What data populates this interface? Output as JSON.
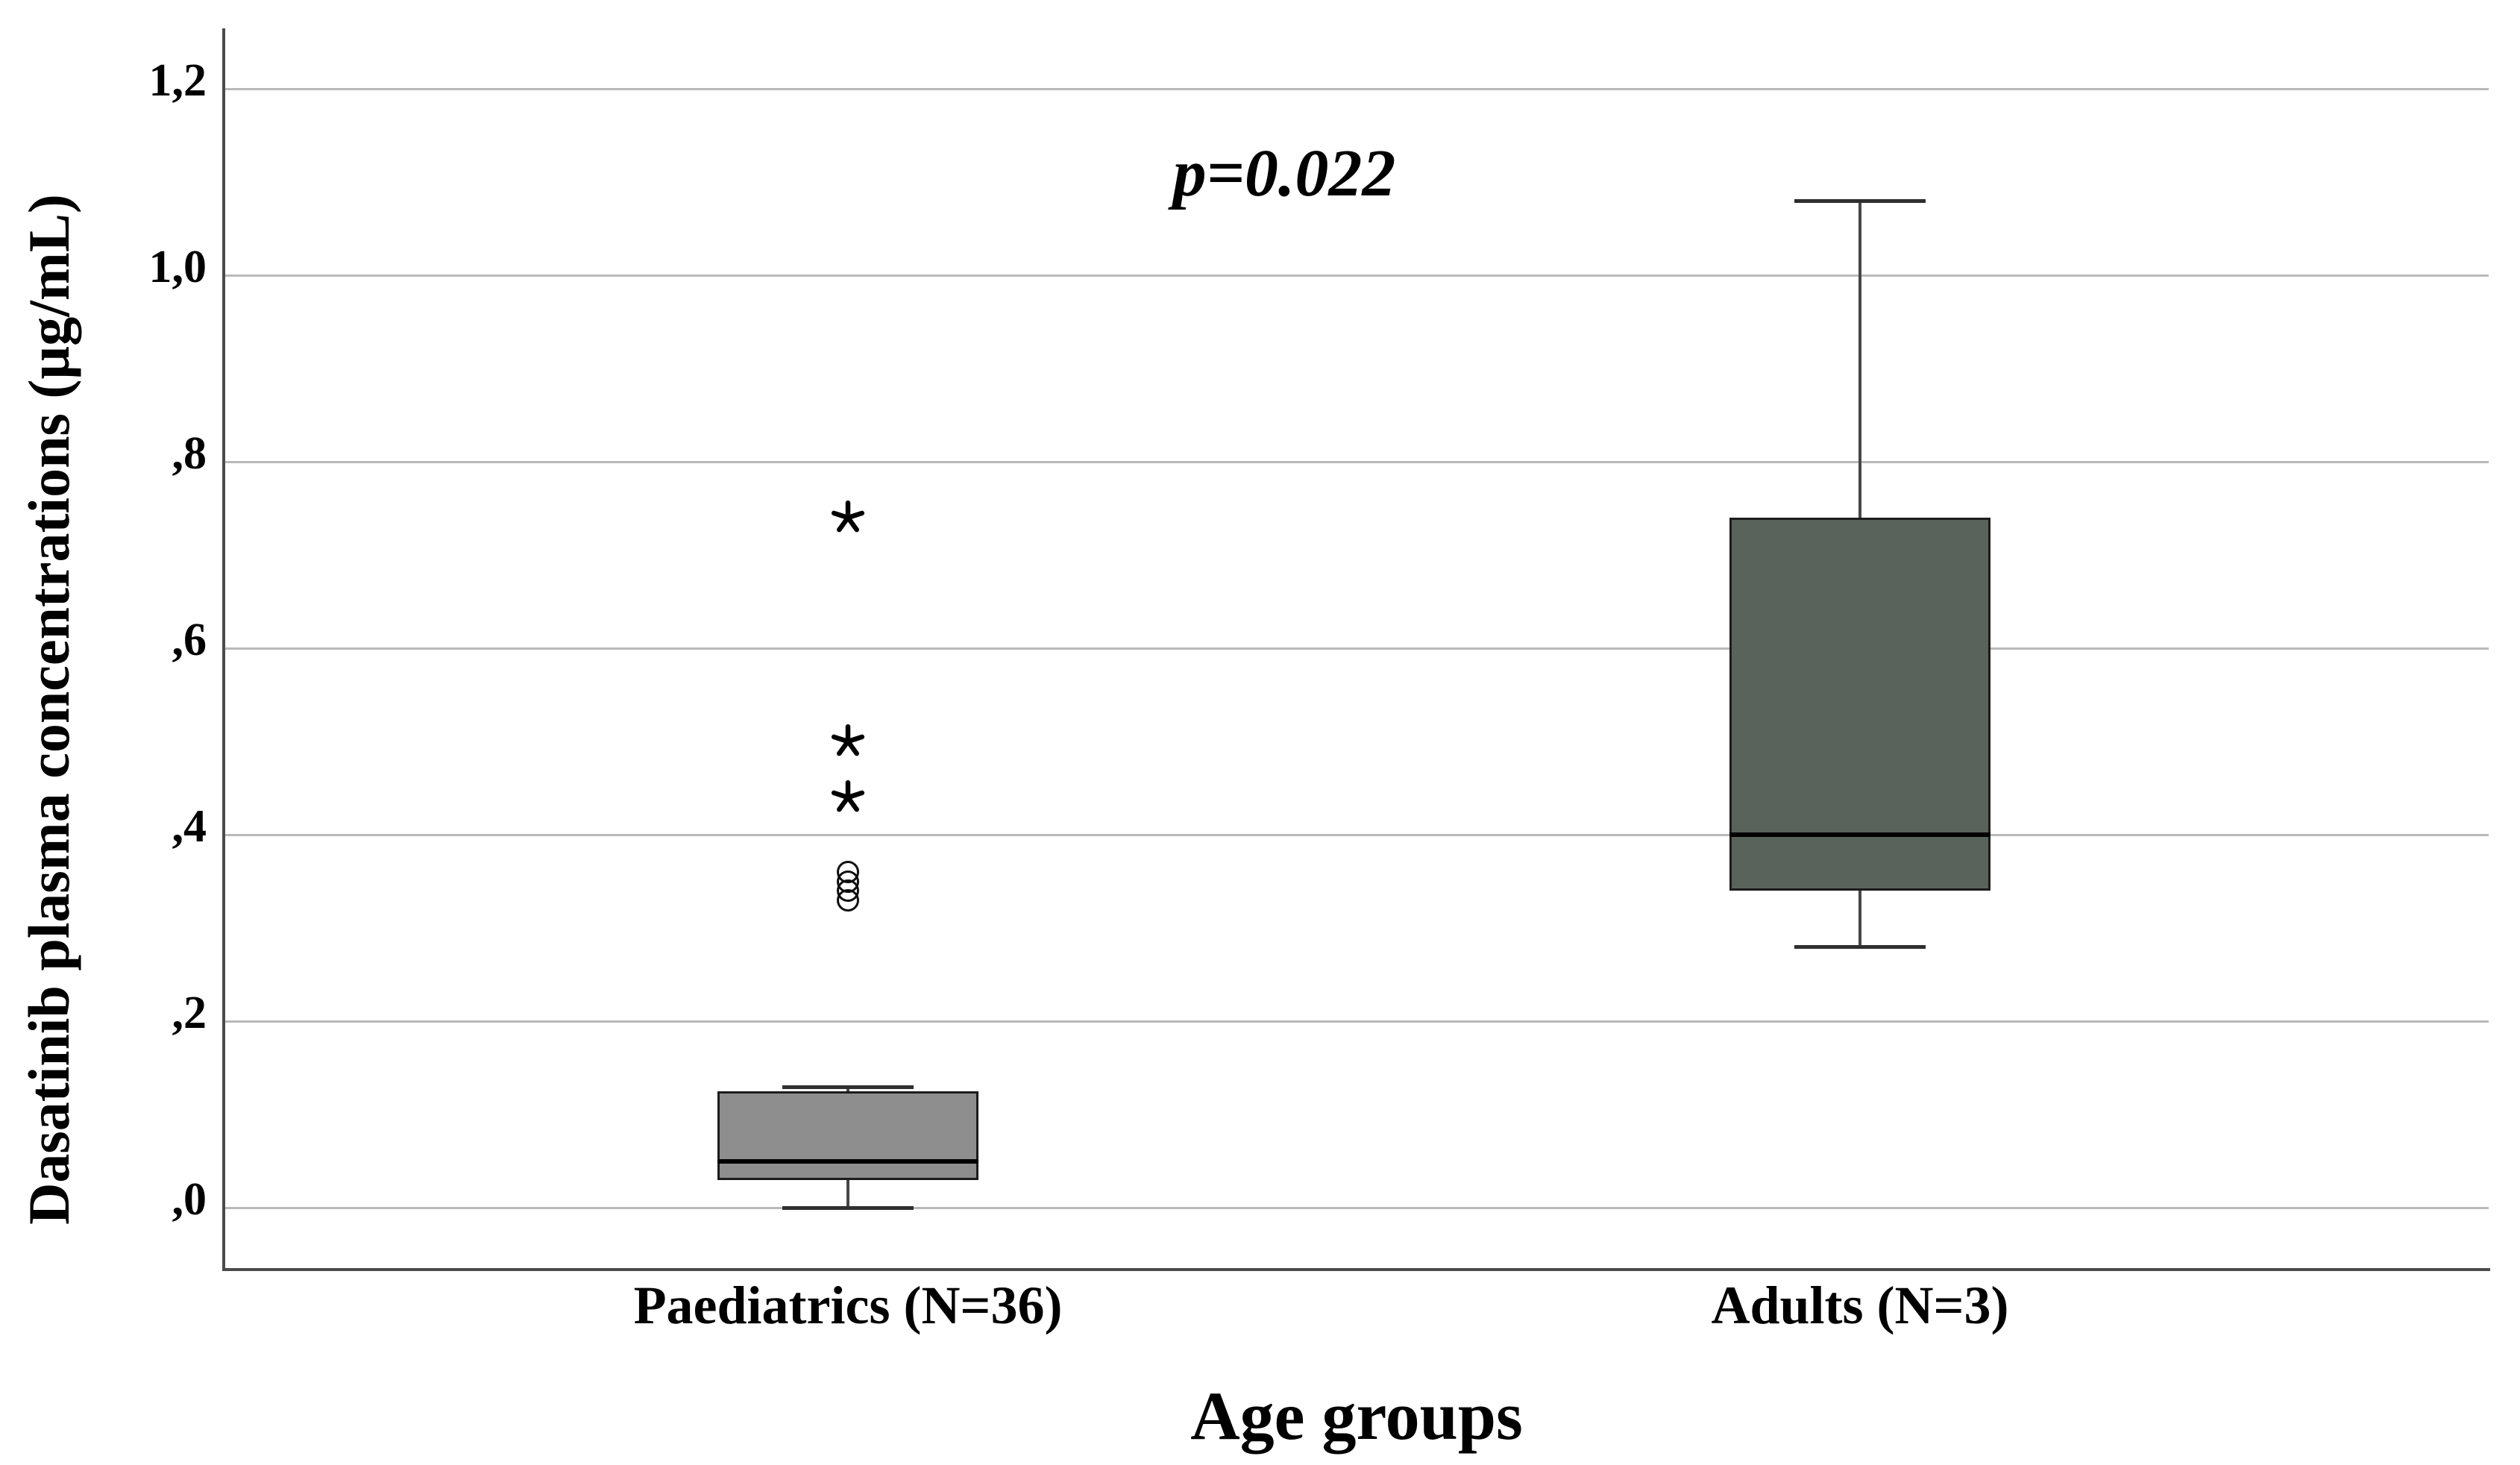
{
  "chart_data": {
    "type": "boxplot",
    "xlabel": "Age groups",
    "ylabel": "Dasatinib plasma concentrations (µg/mL)",
    "annotation": "p=0.022",
    "ylim": [
      -0.07,
      1.27
    ],
    "grid": true,
    "legend": false,
    "categories": [
      "Paediatrics (N=36)",
      "Adults (N=3)"
    ],
    "yticks": [
      {
        "value": 1.2,
        "label": "1,2"
      },
      {
        "value": 1.0,
        "label": "1,0"
      },
      {
        "value": 0.8,
        "label": ",8"
      },
      {
        "value": 0.6,
        "label": ",6"
      },
      {
        "value": 0.4,
        "label": ",4"
      },
      {
        "value": 0.2,
        "label": ",2"
      },
      {
        "value": 0.0,
        "label": ",0"
      }
    ],
    "series": [
      {
        "category": "Paediatrics (N=36)",
        "n": 36,
        "whisker_low": 0.0,
        "q1": 0.03,
        "median": 0.05,
        "q3": 0.125,
        "whisker_high": 0.13,
        "outliers": [
          0.33,
          0.34,
          0.35,
          0.36
        ],
        "extremes": [
          0.44,
          0.5,
          0.74
        ],
        "fill_color": "#8e8e8e"
      },
      {
        "category": "Adults (N=3)",
        "n": 3,
        "whisker_low": 0.28,
        "q1": 0.34,
        "median": 0.4,
        "q3": 0.74,
        "whisker_high": 1.08,
        "outliers": [],
        "extremes": [],
        "fill_color": "#59635c"
      }
    ],
    "colors": {
      "background": "#ffffff",
      "gridline": "#b9b9b9",
      "axis_line": "#4b4b4b",
      "box_border": "#1c1c1c",
      "median_line": "#000000",
      "whisker": "#474747",
      "whisker_cap": "#2f2f2f",
      "outlier_marker": "#000000"
    }
  }
}
